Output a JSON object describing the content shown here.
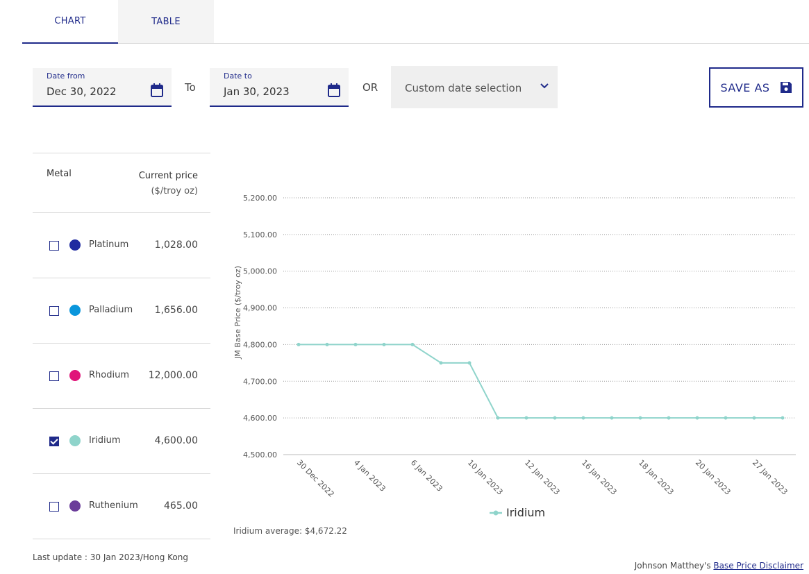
{
  "tabs": {
    "chart": "CHART",
    "table": "TABLE"
  },
  "date_from": {
    "label": "Date from",
    "value": "Dec 30, 2022"
  },
  "to_text": "To",
  "date_to": {
    "label": "Date to",
    "value": "Jan 30, 2023"
  },
  "or_text": "OR",
  "custom_date": {
    "label": "Custom date selection"
  },
  "save_as": {
    "label": "SAVE AS"
  },
  "metals_table": {
    "header_metal": "Metal",
    "header_price": "Current price",
    "header_unit": "($/troy oz)",
    "rows": [
      {
        "name": "Platinum",
        "price": "1,028.00",
        "color": "#1f2aa0",
        "checked": false
      },
      {
        "name": "Palladium",
        "price": "1,656.00",
        "color": "#0a96dc",
        "checked": false
      },
      {
        "name": "Rhodium",
        "price": "12,000.00",
        "color": "#e0157a",
        "checked": false
      },
      {
        "name": "Iridium",
        "price": "4,600.00",
        "color": "#8fd4cb",
        "checked": true
      },
      {
        "name": "Ruthenium",
        "price": "465.00",
        "color": "#6b3d9a",
        "checked": false
      }
    ]
  },
  "last_update": "Last update : 30 Jan 2023/Hong Kong",
  "average_text": "Iridium average: $4,672.22",
  "footer": {
    "prefix": "Johnson Matthey's ",
    "link": "Base Price Disclaimer"
  },
  "chart_data": {
    "type": "line",
    "ylabel": "JM Base Price ($/troy oz)",
    "xlabel": "",
    "ylim": [
      4500,
      5200
    ],
    "yticks": [
      4500,
      4600,
      4700,
      4800,
      4900,
      5000,
      5100,
      5200
    ],
    "ytick_labels": [
      "4,500.00",
      "4,600.00",
      "4,700.00",
      "4,800.00",
      "4,900.00",
      "5,000.00",
      "5,100.00",
      "5,200.00"
    ],
    "xtick_labels": [
      "30 Dec 2022",
      "4 Jan 2023",
      "6 Jan 2023",
      "10 Jan 2023",
      "12 Jan 2023",
      "16 Jan 2023",
      "18 Jan 2023",
      "20 Jan 2023",
      "27 Jan 2023"
    ],
    "grid": true,
    "legend_position": "bottom-center",
    "series": [
      {
        "name": "Iridium",
        "color": "#8fd4cb",
        "values": [
          4800,
          4800,
          4800,
          4800,
          4800,
          4750,
          4750,
          4600,
          4600,
          4600,
          4600,
          4600,
          4600,
          4600,
          4600,
          4600,
          4600,
          4600
        ]
      }
    ]
  }
}
